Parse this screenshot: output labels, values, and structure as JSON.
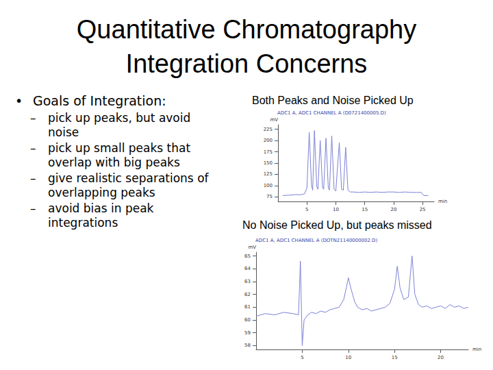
{
  "title": [
    "Quantitative Chromatography",
    "Integration Concerns"
  ],
  "bullets": {
    "main": "Goals of Integration:",
    "items": [
      "pick up peaks, but avoid noise",
      "pick up small peaks that overlap with big peaks",
      "give realistic separations of overlapping peaks",
      "avoid bias in peak integrations"
    ]
  },
  "chart_data": [
    {
      "type": "line",
      "title": "Both Peaks and Noise Picked Up",
      "subtitle": "ADC1 A, ADC1 CHANNEL A (D0721400005.D)",
      "x_label": "min",
      "y_label": "mV",
      "x": [
        0.8,
        2,
        3,
        4,
        4.6,
        5.0,
        5.4,
        5.8,
        6.0,
        6.3,
        6.7,
        6.9,
        7.3,
        7.7,
        7.9,
        8.3,
        8.7,
        8.9,
        9.3,
        9.7,
        10.0,
        10.6,
        11.0,
        11.3,
        11.7,
        12.1,
        12.5,
        13,
        14,
        15,
        16,
        17,
        18,
        19,
        20,
        21,
        22,
        23,
        24,
        24.8,
        25.2,
        26
      ],
      "values": [
        78,
        79,
        80,
        80,
        82,
        95,
        218,
        100,
        90,
        222,
        98,
        92,
        200,
        96,
        92,
        205,
        95,
        90,
        210,
        92,
        88,
        195,
        92,
        90,
        185,
        90,
        86,
        86,
        85,
        86,
        85,
        86,
        85,
        86,
        86,
        85,
        86,
        85,
        85,
        85,
        78,
        78
      ],
      "color": "#7b80d6",
      "xlim": [
        0,
        27
      ],
      "xticks": [
        5,
        10,
        15,
        20,
        25
      ],
      "ylim": [
        65,
        235
      ],
      "yticks": [
        75,
        100,
        125,
        150,
        175,
        200,
        225
      ],
      "grid": false
    },
    {
      "type": "line",
      "title": "No Noise Picked Up, but peaks missed",
      "subtitle": "ADC1 A, ADC1 CHANNEL A (DOTN21140000002.D)",
      "x_label": "min",
      "y_label": "mV",
      "x": [
        0,
        1,
        2,
        3,
        4,
        4.6,
        4.8,
        5.0,
        5.2,
        5.6,
        6,
        6.5,
        7,
        7.5,
        8,
        8.5,
        9,
        9.5,
        9.8,
        10.0,
        10.3,
        10.7,
        11,
        11.5,
        12,
        12.5,
        13,
        13.5,
        14,
        14.5,
        15,
        15.3,
        15.6,
        16,
        16.5,
        16.9,
        17.2,
        17.6,
        18,
        18.5,
        19,
        19.5,
        20,
        20.5,
        21,
        21.5,
        22,
        22.5,
        23
      ],
      "values": [
        60.3,
        60.5,
        60.4,
        60.6,
        60.5,
        60.4,
        64.6,
        58.0,
        60.0,
        60.4,
        60.6,
        60.5,
        60.7,
        60.6,
        60.8,
        60.9,
        61.0,
        61.6,
        62.6,
        63.3,
        62.4,
        61.4,
        61.0,
        60.8,
        60.9,
        60.7,
        60.8,
        60.9,
        61.0,
        61.3,
        62.4,
        64.2,
        62.5,
        61.6,
        61.8,
        65.0,
        62.0,
        61.2,
        61.0,
        61.1,
        60.9,
        61.0,
        61.1,
        60.9,
        61.2,
        61.0,
        61.1,
        60.9,
        61.0
      ],
      "color": "#7b80d6",
      "xlim": [
        0,
        23
      ],
      "xticks": [
        5,
        10,
        15,
        20
      ],
      "ylim": [
        57.7,
        65.3
      ],
      "yticks": [
        58,
        59,
        60,
        61,
        62,
        63,
        64,
        65
      ],
      "grid": false
    }
  ]
}
